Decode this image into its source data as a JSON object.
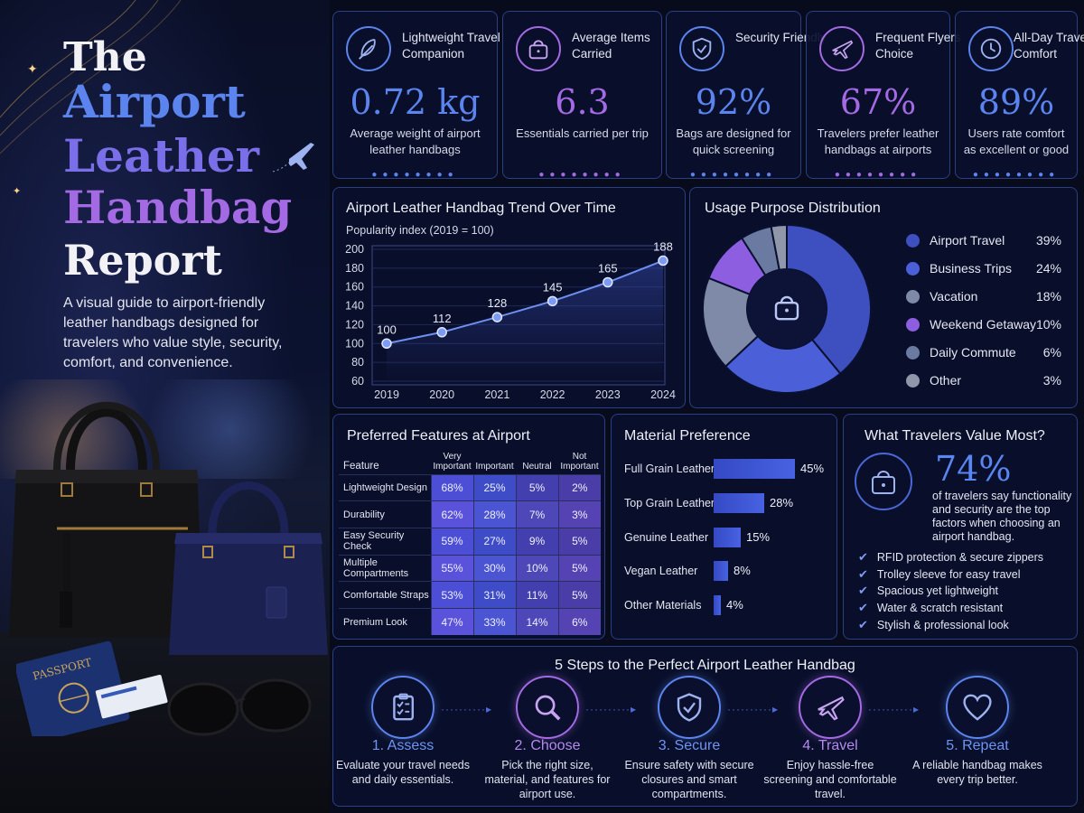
{
  "hero": {
    "title_the": "The",
    "title_l1": "Airport",
    "title_l2": "Leather",
    "title_l3": "Handbag",
    "title_l4": "Report",
    "subtitle": "A visual guide to airport-friendly leather handbags designed for travelers who value style, security, comfort, and convenience.",
    "passport_text": "PASSPORT"
  },
  "kpis": [
    {
      "label": "Lightweight Travel Companion",
      "value": "0.72 kg",
      "desc": "Average weight of airport leather handbags",
      "icon": "feather-icon",
      "color": "#5b84ee"
    },
    {
      "label": "Average Items Carried",
      "value": "6.3",
      "desc": "Essentials carried per trip",
      "icon": "bag-icon",
      "color": "#a46ae3"
    },
    {
      "label": "Security Friendly",
      "value": "92%",
      "desc": "Bags are designed for quick screening",
      "icon": "shield-check-icon",
      "color": "#5b84ee"
    },
    {
      "label": "Frequent Flyers Choice",
      "value": "67%",
      "desc": "Travelers prefer leather handbags at airports",
      "icon": "plane-icon",
      "color": "#a46ae3"
    },
    {
      "label": "All-Day Travel Comfort",
      "value": "89%",
      "desc": "Users rate comfort as excellent or good",
      "icon": "clock-icon",
      "color": "#5b84ee"
    }
  ],
  "trend": {
    "title": "Airport Leather Handbag Trend Over Time",
    "ylabel": "Popularity index (2019 = 100)"
  },
  "usage": {
    "title": "Usage Purpose Distribution"
  },
  "features": {
    "title": "Preferred Features at Airport",
    "col_feature": "Feature",
    "columns": [
      "Very Important",
      "Important",
      "Neutral",
      "Not Important"
    ],
    "rows": [
      {
        "name": "Lightweight Design",
        "values": [
          "68%",
          "25%",
          "5%",
          "2%"
        ]
      },
      {
        "name": "Durability",
        "values": [
          "62%",
          "28%",
          "7%",
          "3%"
        ]
      },
      {
        "name": "Easy Security Check",
        "values": [
          "59%",
          "27%",
          "9%",
          "5%"
        ]
      },
      {
        "name": "Multiple Compartments",
        "values": [
          "55%",
          "30%",
          "10%",
          "5%"
        ]
      },
      {
        "name": "Comfortable Straps",
        "values": [
          "53%",
          "31%",
          "11%",
          "5%"
        ]
      },
      {
        "name": "Premium Look",
        "values": [
          "47%",
          "33%",
          "14%",
          "6%"
        ]
      }
    ]
  },
  "material": {
    "title": "Material Preference"
  },
  "values_panel": {
    "title": "What Travelers Value Most?",
    "big": "74%",
    "desc": "of travelers say functionality and security are the top factors when choosing an airport handbag.",
    "checks": [
      "RFID protection & secure zippers",
      "Trolley sleeve for easy travel",
      "Spacious yet lightweight",
      "Water & scratch resistant",
      "Stylish & professional look"
    ]
  },
  "steps": {
    "title": "5 Steps to the Perfect Airport Leather Handbag",
    "items": [
      {
        "title": "1. Assess",
        "desc": "Evaluate your travel needs and daily essentials.",
        "icon": "checklist-icon",
        "color": "#5b84ee"
      },
      {
        "title": "2. Choose",
        "desc": "Pick the right size, material, and features for airport use.",
        "icon": "magnifier-icon",
        "color": "#a46ae3"
      },
      {
        "title": "3. Secure",
        "desc": "Ensure safety with secure closures and smart compartments.",
        "icon": "shield-check-icon",
        "color": "#5b84ee"
      },
      {
        "title": "4. Travel",
        "desc": "Enjoy hassle-free screening and comfortable travel.",
        "icon": "plane-icon",
        "color": "#a46ae3"
      },
      {
        "title": "5. Repeat",
        "desc": "A reliable handbag makes every trip better.",
        "icon": "heart-icon",
        "color": "#5b84ee"
      }
    ]
  },
  "chart_data": [
    {
      "type": "line",
      "title": "Airport Leather Handbag Trend Over Time",
      "ylabel": "Popularity index (2019 = 100)",
      "x": [
        "2019",
        "2020",
        "2021",
        "2022",
        "2023",
        "2024"
      ],
      "values": [
        100,
        112,
        128,
        145,
        165,
        188
      ],
      "ylim": [
        60,
        200
      ],
      "yticks": [
        60,
        80,
        100,
        120,
        140,
        160,
        180,
        200
      ],
      "grid": true,
      "color": "#6d8ff0"
    },
    {
      "type": "pie",
      "title": "Usage Purpose Distribution",
      "center_icon": "handbag-icon",
      "slices": [
        {
          "label": "Airport Travel",
          "value": 39,
          "display": "39%",
          "color": "#3e4fc0"
        },
        {
          "label": "Business Trips",
          "value": 24,
          "display": "24%",
          "color": "#4a5fd8"
        },
        {
          "label": "Vacation",
          "value": 18,
          "display": "18%",
          "color": "#7e8aa8"
        },
        {
          "label": "Weekend Getaway",
          "value": 10,
          "display": "10%",
          "color": "#8d5ee0"
        },
        {
          "label": "Daily Commute",
          "value": 6,
          "display": "6%",
          "color": "#6a7aa0"
        },
        {
          "label": "Other",
          "value": 3,
          "display": "3%",
          "color": "#9097aa"
        }
      ],
      "legend": "right"
    },
    {
      "type": "bar",
      "orientation": "horizontal",
      "title": "Material Preference",
      "categories": [
        "Full Grain Leather",
        "Top Grain Leather",
        "Genuine Leather",
        "Vegan Leather",
        "Other Materials"
      ],
      "values": [
        45,
        28,
        15,
        8,
        4
      ],
      "labels": [
        "45%",
        "28%",
        "15%",
        "8%",
        "4%"
      ],
      "color": "#4259d8"
    },
    {
      "type": "table",
      "title": "Preferred Features at Airport",
      "columns": [
        "Very Important",
        "Important",
        "Neutral",
        "Not Important"
      ],
      "rows": [
        "Lightweight Design",
        "Durability",
        "Easy Security Check",
        "Multiple Compartments",
        "Comfortable Straps",
        "Premium Look"
      ],
      "values": [
        [
          68,
          25,
          5,
          2
        ],
        [
          62,
          28,
          7,
          3
        ],
        [
          59,
          27,
          9,
          5
        ],
        [
          55,
          30,
          10,
          5
        ],
        [
          53,
          31,
          11,
          5
        ],
        [
          47,
          33,
          14,
          6
        ]
      ]
    }
  ]
}
